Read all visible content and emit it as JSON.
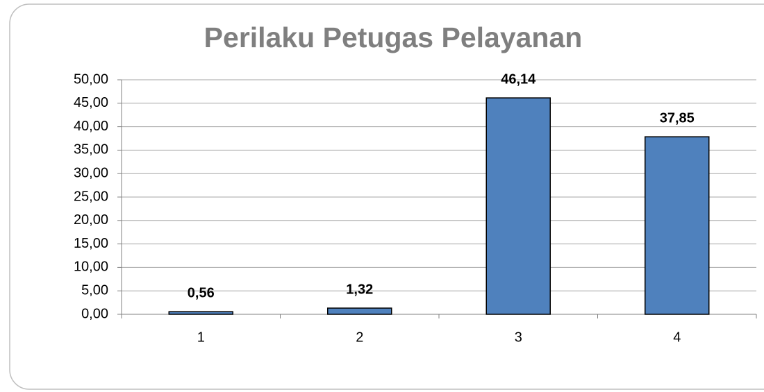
{
  "chart_data": {
    "type": "bar",
    "title": "Perilaku Petugas Pelayanan",
    "categories": [
      "1",
      "2",
      "3",
      "4"
    ],
    "values": [
      0.56,
      1.32,
      46.14,
      37.85
    ],
    "value_labels": [
      "0,56",
      "1,32",
      "46,14",
      "37,85"
    ],
    "color": "#4f81bd",
    "ylim": [
      0,
      50
    ],
    "yticks": [
      {
        "value": 0,
        "label": "0,00"
      },
      {
        "value": 5,
        "label": "5,00"
      },
      {
        "value": 10,
        "label": "10,00"
      },
      {
        "value": 15,
        "label": "15,00"
      },
      {
        "value": 20,
        "label": "20,00"
      },
      {
        "value": 25,
        "label": "25,00"
      },
      {
        "value": 30,
        "label": "30,00"
      },
      {
        "value": 35,
        "label": "35,00"
      },
      {
        "value": 40,
        "label": "40,00"
      },
      {
        "value": 45,
        "label": "45,00"
      },
      {
        "value": 50,
        "label": "50,00"
      }
    ],
    "grid": true
  }
}
